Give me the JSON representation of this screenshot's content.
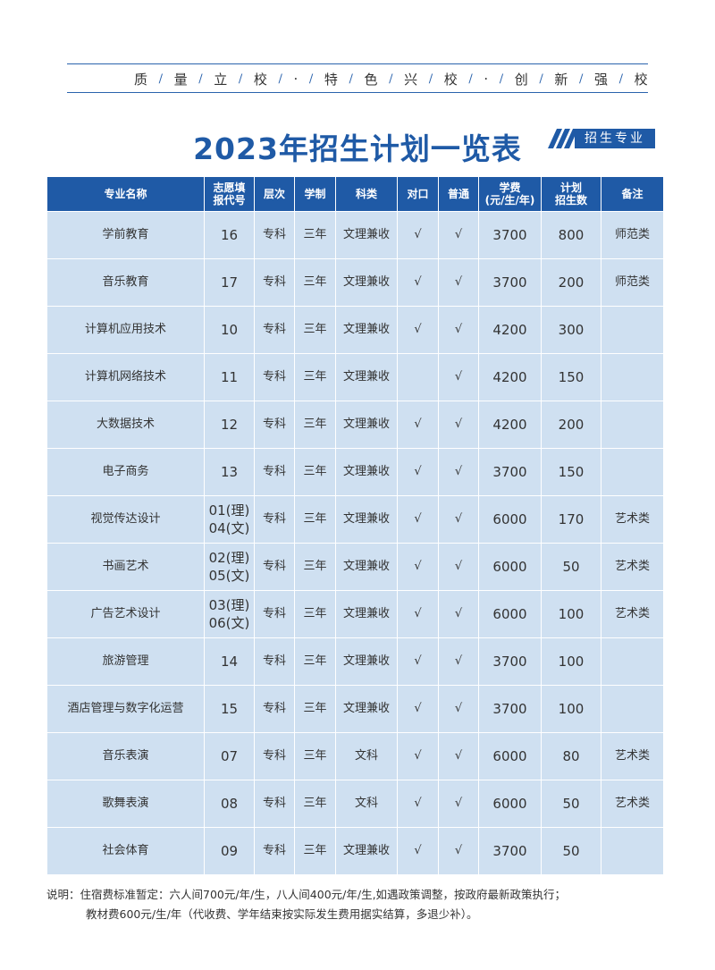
{
  "motto": [
    "质",
    "量",
    "立",
    "校",
    "·",
    "特",
    "色",
    "兴",
    "校",
    "·",
    "创",
    "新",
    "强",
    "校"
  ],
  "title": "2023年招生计划一览表",
  "badge": "招生专业",
  "table": {
    "headers": [
      [
        "专业名称"
      ],
      [
        "志愿填",
        "报代号"
      ],
      [
        "层次"
      ],
      [
        "学制"
      ],
      [
        "科类"
      ],
      [
        "对口"
      ],
      [
        "普通"
      ],
      [
        "学费",
        "(元/生/年)"
      ],
      [
        "计划",
        "招生数"
      ],
      [
        "备注"
      ]
    ],
    "rows": [
      [
        "学前教育",
        "16",
        "专科",
        "三年",
        "文理兼收",
        "√",
        "√",
        3700,
        800,
        "师范类"
      ],
      [
        "音乐教育",
        "17",
        "专科",
        "三年",
        "文理兼收",
        "√",
        "√",
        3700,
        200,
        "师范类"
      ],
      [
        "计算机应用技术",
        "10",
        "专科",
        "三年",
        "文理兼收",
        "√",
        "√",
        4200,
        300,
        null
      ],
      [
        "计算机网络技术",
        "11",
        "专科",
        "三年",
        "文理兼收",
        null,
        "√",
        4200,
        150,
        null
      ],
      [
        "大数据技术",
        "12",
        "专科",
        "三年",
        "文理兼收",
        "√",
        "√",
        4200,
        200,
        null
      ],
      [
        "电子商务",
        "13",
        "专科",
        "三年",
        "文理兼收",
        "√",
        "√",
        3700,
        150,
        null
      ],
      [
        "视觉传达设计",
        [
          "01(理)",
          "04(文)"
        ],
        "专科",
        "三年",
        "文理兼收",
        "√",
        "√",
        6000,
        170,
        "艺术类"
      ],
      [
        "书画艺术",
        [
          "02(理)",
          "05(文)"
        ],
        "专科",
        "三年",
        "文理兼收",
        "√",
        "√",
        6000,
        50,
        "艺术类"
      ],
      [
        "广告艺术设计",
        [
          "03(理)",
          "06(文)"
        ],
        "专科",
        "三年",
        "文理兼收",
        "√",
        "√",
        6000,
        100,
        "艺术类"
      ],
      [
        "旅游管理",
        "14",
        "专科",
        "三年",
        "文理兼收",
        "√",
        "√",
        3700,
        100,
        null
      ],
      [
        "酒店管理与数字化运营",
        "15",
        "专科",
        "三年",
        "文理兼收",
        "√",
        "√",
        3700,
        100,
        null
      ],
      [
        "音乐表演",
        "07",
        "专科",
        "三年",
        "文科",
        "√",
        "√",
        6000,
        80,
        "艺术类"
      ],
      [
        "歌舞表演",
        "08",
        "专科",
        "三年",
        "文科",
        "√",
        "√",
        6000,
        50,
        "艺术类"
      ],
      [
        "社会体育",
        "09",
        "专科",
        "三年",
        "文理兼收",
        "√",
        "√",
        3700,
        50,
        null
      ]
    ]
  },
  "notes": [
    "说明：住宿费标准暂定：六人间700元/年/生，八人间400元/年/生,如遇政策调整，按政府最新政策执行；",
    "教材费600元/生/年（代收费、学年结束按实际发生费用据实结算，多退少补）。"
  ]
}
